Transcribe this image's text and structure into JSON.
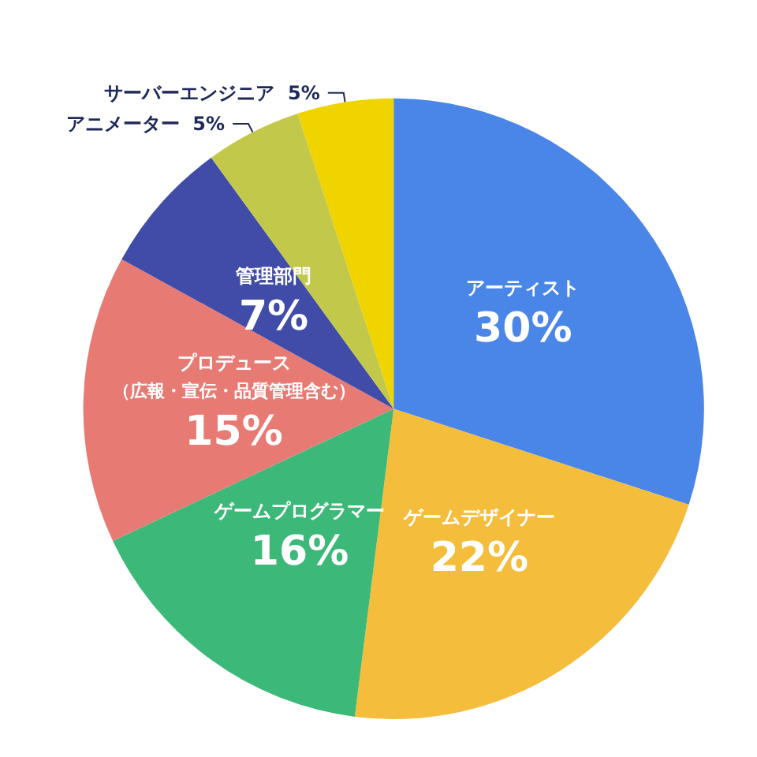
{
  "chart_data": {
    "type": "pie",
    "categories": [
      "アーティスト",
      "ゲームデザイナー",
      "ゲームプログラマー",
      "プロデュース（広報・宣伝・品質管理含む）",
      "管理部門",
      "アニメーター",
      "サーバーエンジニア"
    ],
    "values": [
      30,
      22,
      16,
      15,
      7,
      5,
      5
    ],
    "value_labels": [
      "30%",
      "22%",
      "16%",
      "15%",
      "7%",
      "5%",
      "5%"
    ],
    "colors": [
      "#4a86e8",
      "#f4bd3c",
      "#3cb878",
      "#e87a74",
      "#414ca8",
      "#c2c94a",
      "#f0d400"
    ],
    "legend": false
  }
}
